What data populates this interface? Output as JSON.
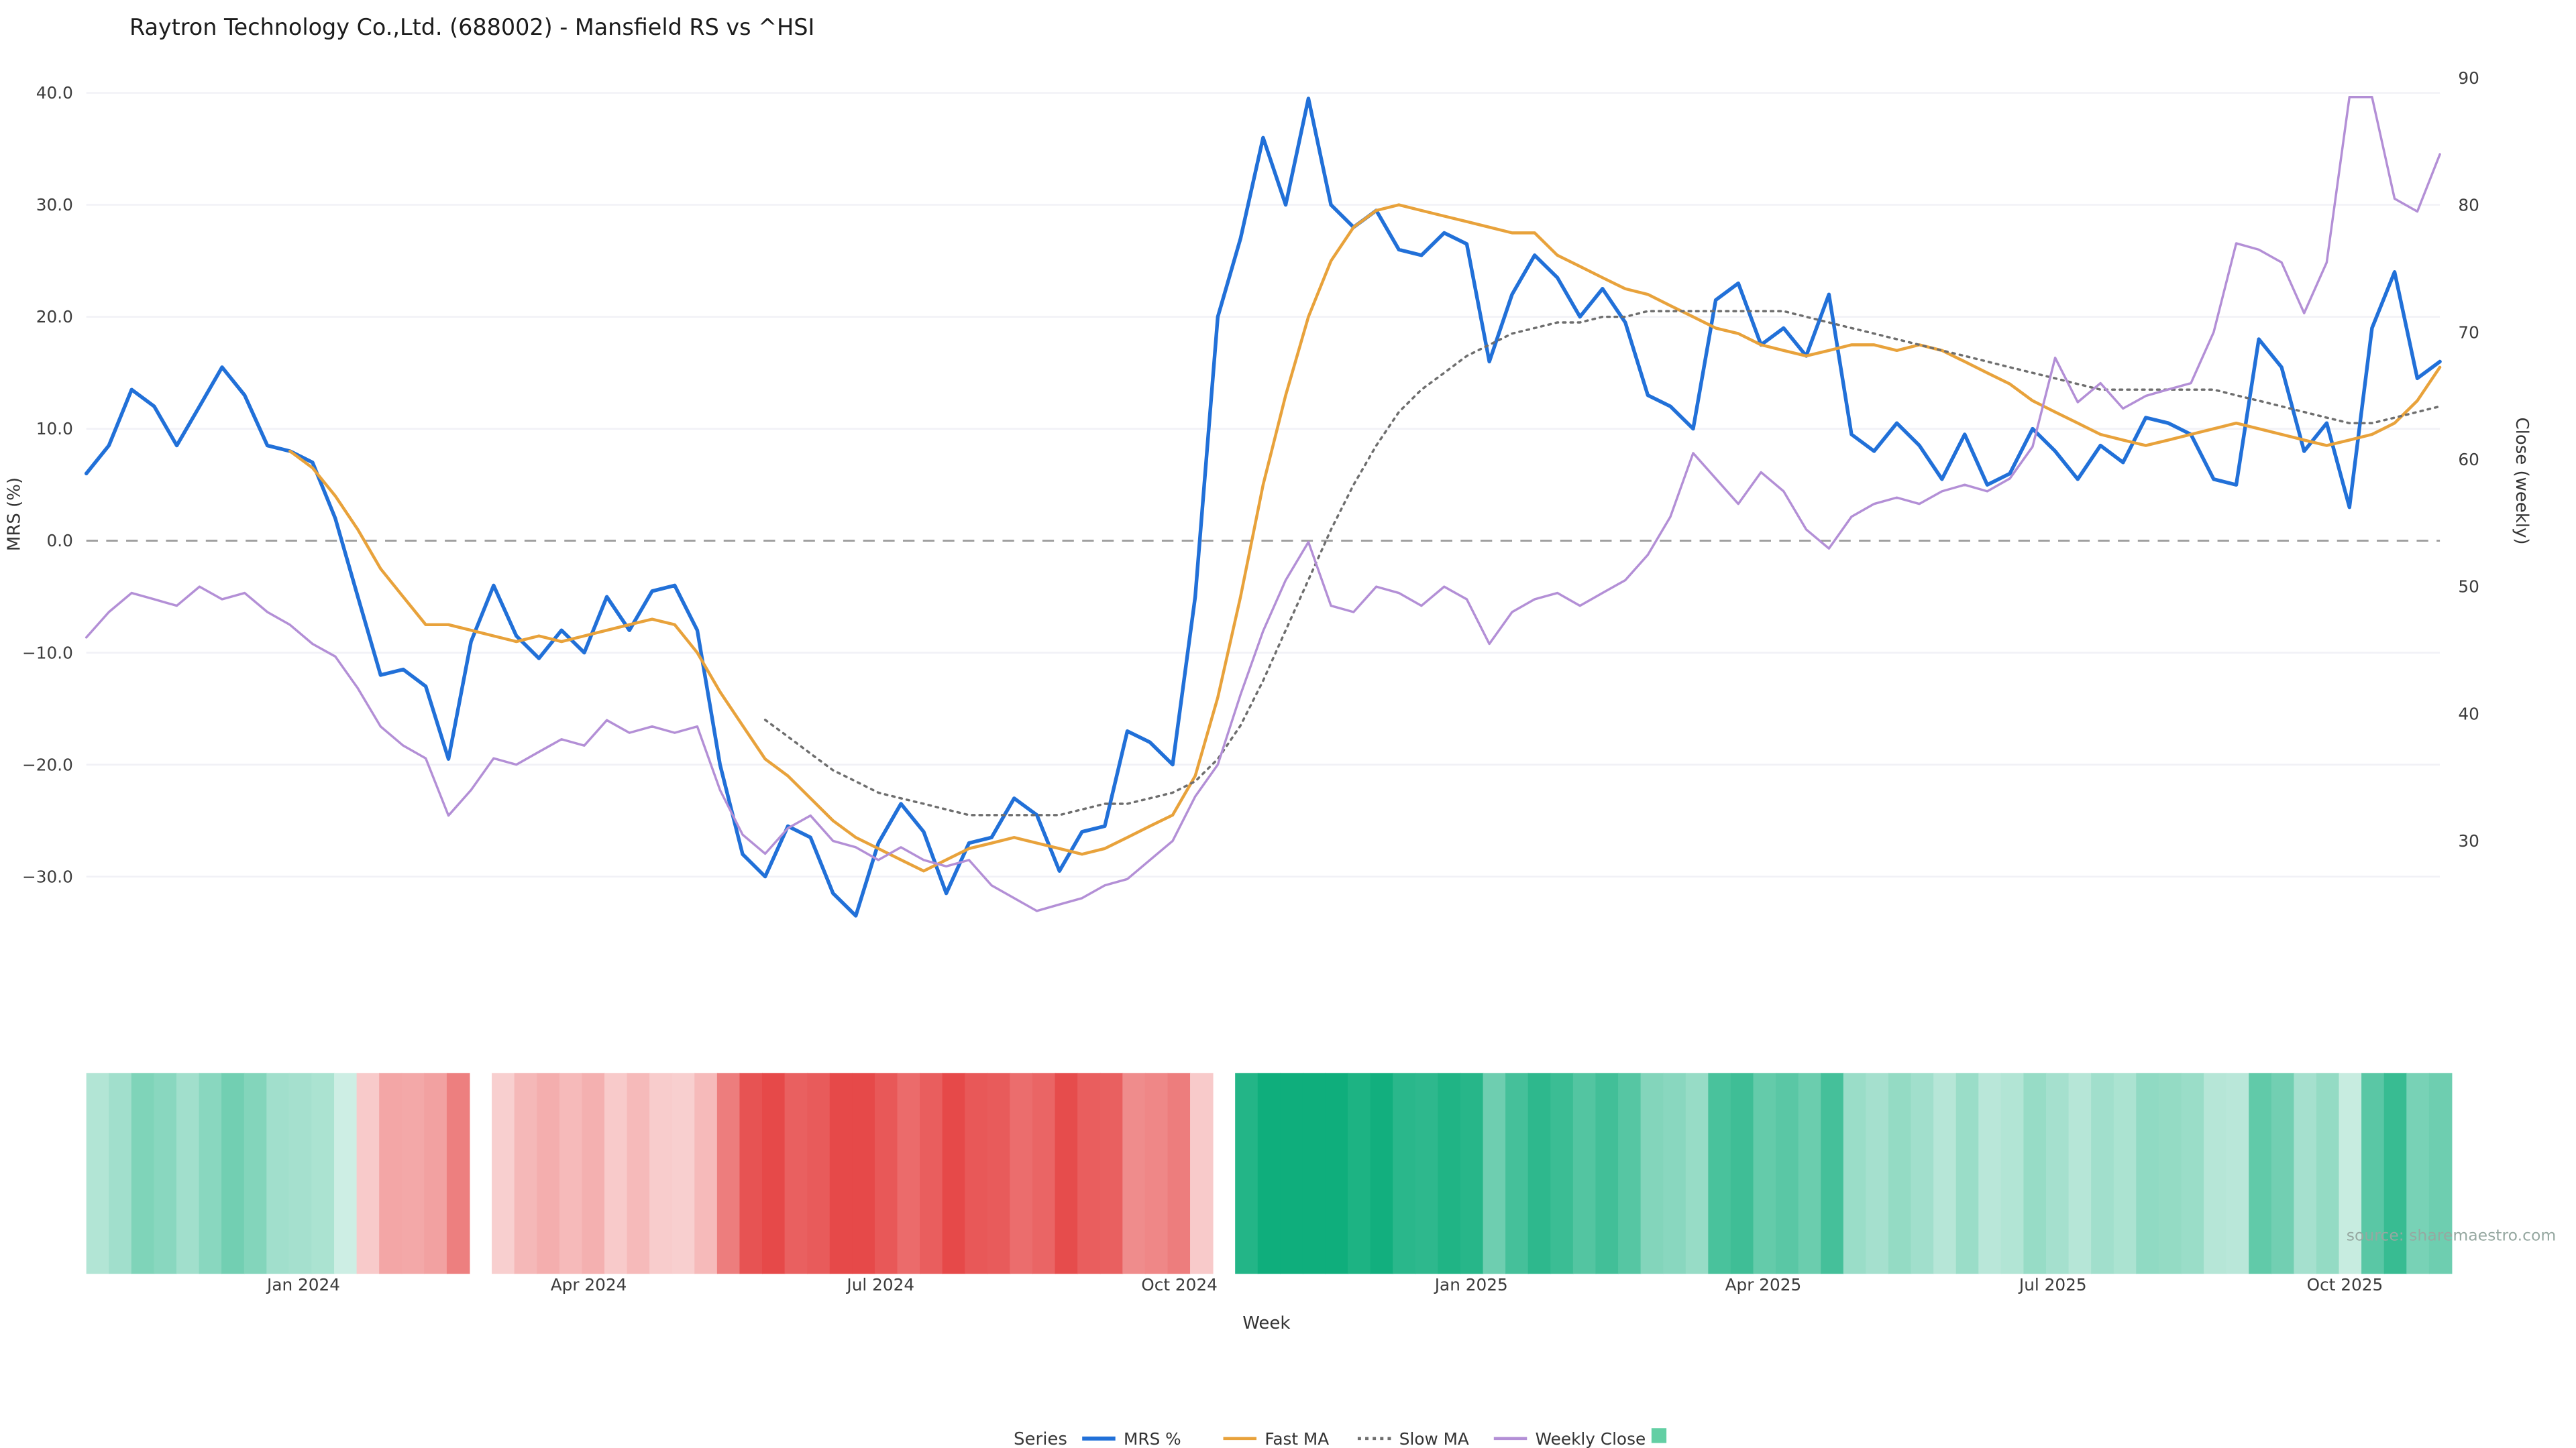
{
  "title": "Raytron Technology Co.,Ltd. (688002) - Mansfield RS vs ^HSI",
  "source": "source: sharemaestro.com",
  "axes": {
    "left_label": "MRS (%)",
    "right_label": "Close (weekly)",
    "x_label": "Week"
  },
  "legend": {
    "title": "Series",
    "items": [
      {
        "label": "MRS %",
        "type": "line",
        "color": "#2170d8"
      },
      {
        "label": "Fast MA",
        "type": "line",
        "color": "#e8a23b"
      },
      {
        "label": "Slow MA",
        "type": "dashed-line",
        "color": "#6e6e6e"
      },
      {
        "label": "Weekly Close",
        "type": "line",
        "color": "#b38fd6"
      },
      {
        "label": "",
        "type": "swatch",
        "color": "#63cfa4"
      }
    ]
  },
  "chart_data": {
    "type": "line",
    "x_unit": "week",
    "weeks": 105,
    "grid": true,
    "x_ticks": [
      {
        "label": "Jan 2024",
        "week": 9.6
      },
      {
        "label": "Apr 2024",
        "week": 22.2
      },
      {
        "label": "Jul 2024",
        "week": 35.1
      },
      {
        "label": "Oct 2024",
        "week": 48.3
      },
      {
        "label": "Jan 2025",
        "week": 61.2
      },
      {
        "label": "Apr 2025",
        "week": 74.1
      },
      {
        "label": "Jul 2025",
        "week": 86.9
      },
      {
        "label": "Oct 2025",
        "week": 99.8
      }
    ],
    "y_left": {
      "label": "MRS (%)",
      "range": [
        -38,
        41
      ],
      "ticks": [
        40,
        30,
        20,
        10,
        0,
        -10,
        -20,
        -30
      ],
      "tick_labels": [
        "40.0",
        "30.0",
        "20.0",
        "10.0",
        "0.0",
        "−10.0",
        "−20.0",
        "−30.0"
      ],
      "zero_dashed_line": true
    },
    "y_right": {
      "label": "Close (weekly)",
      "range": [
        29,
        90
      ],
      "ticks": [
        90,
        80,
        70,
        60,
        50,
        40,
        30
      ],
      "tick_labels": [
        "90",
        "80",
        "70",
        "60",
        "50",
        "40",
        "30"
      ]
    },
    "series": [
      {
        "name": "MRS %",
        "axis": "left",
        "color": "#2170d8",
        "style": "solid",
        "width": 2.2,
        "values": [
          6,
          8.5,
          13.5,
          12,
          8.5,
          12,
          15.5,
          13,
          8.5,
          8,
          7,
          2,
          -5,
          -12,
          -11.5,
          -13,
          -19.5,
          -9,
          -4,
          -8.5,
          -10.5,
          -8,
          -10,
          -5,
          -8,
          -4.5,
          -4,
          -8,
          -20,
          -28,
          -30,
          -25.5,
          -26.5,
          -31.5,
          -33.5,
          -27,
          -23.5,
          -26,
          -31.5,
          -27,
          -26.5,
          -23,
          -24.5,
          -29.5,
          -26,
          -25.5,
          -17,
          -18,
          -20,
          -5,
          20,
          27,
          36,
          30,
          39.5,
          30,
          28,
          29.5,
          26,
          25.5,
          27.5,
          26.5,
          16,
          22,
          25.5,
          23.5,
          20,
          22.5,
          19.5,
          13,
          12,
          10,
          21.5,
          23,
          17.5,
          19,
          16.5,
          22,
          9.5,
          8,
          10.5,
          8.5,
          5.5,
          9.5,
          5,
          6,
          10,
          8,
          5.5,
          8.5,
          7,
          11,
          10.5,
          9.5,
          5.5,
          5,
          18,
          15.5,
          8,
          10.5,
          3,
          19,
          24,
          14.5,
          16
        ]
      },
      {
        "name": "Fast MA",
        "axis": "left",
        "color": "#e8a23b",
        "style": "solid",
        "width": 1.8,
        "values": [
          null,
          null,
          null,
          null,
          null,
          null,
          null,
          null,
          null,
          8,
          6.5,
          4,
          1,
          -2.5,
          -5,
          -7.5,
          -7.5,
          -8,
          -8.5,
          -9,
          -8.5,
          -9,
          -8.5,
          -8,
          -7.5,
          -7,
          -7.5,
          -10,
          -13.5,
          -16.5,
          -19.5,
          -21,
          -23,
          -25,
          -26.5,
          -27.5,
          -28.5,
          -29.5,
          -28.5,
          -27.5,
          -27,
          -26.5,
          -27,
          -27.5,
          -28,
          -27.5,
          -26.5,
          -25.5,
          -24.5,
          -21,
          -14,
          -5,
          5,
          13,
          20,
          25,
          28,
          29.5,
          30,
          29.5,
          29,
          28.5,
          28,
          27.5,
          27.5,
          25.5,
          24.5,
          23.5,
          22.5,
          22,
          21,
          20,
          19,
          18.5,
          17.5,
          17,
          16.5,
          17,
          17.5,
          17.5,
          17,
          17.5,
          17,
          16,
          15,
          14,
          12.5,
          11.5,
          10.5,
          9.5,
          9,
          8.5,
          9,
          9.5,
          10,
          10.5,
          10,
          9.5,
          9,
          8.5,
          9,
          9.5,
          10.5,
          12.5,
          15.5
        ]
      },
      {
        "name": "Slow MA",
        "axis": "left",
        "color": "#6e6e6e",
        "style": "dotted",
        "width": 1.4,
        "values": [
          null,
          null,
          null,
          null,
          null,
          null,
          null,
          null,
          null,
          null,
          null,
          null,
          null,
          null,
          null,
          null,
          null,
          null,
          null,
          null,
          null,
          null,
          null,
          null,
          null,
          null,
          null,
          null,
          null,
          null,
          -16,
          -17.5,
          -19,
          -20.5,
          -21.5,
          -22.5,
          -23,
          -23.5,
          -24,
          -24.5,
          -24.5,
          -24.5,
          -24.5,
          -24.5,
          -24,
          -23.5,
          -23.5,
          -23,
          -22.5,
          -21.5,
          -19.5,
          -16.5,
          -12.5,
          -8,
          -3.5,
          1,
          5,
          8.5,
          11.5,
          13.5,
          15,
          16.5,
          17.5,
          18.5,
          19,
          19.5,
          19.5,
          20,
          20,
          20.5,
          20.5,
          20.5,
          20.5,
          20.5,
          20.5,
          20.5,
          20,
          19.5,
          19,
          18.5,
          18,
          17.5,
          17,
          16.5,
          16,
          15.5,
          15,
          14.5,
          14,
          13.5,
          13.5,
          13.5,
          13.5,
          13.5,
          13.5,
          13,
          12.5,
          12,
          11.5,
          11,
          10.5,
          10.5,
          11,
          11.5,
          12
        ]
      },
      {
        "name": "Weekly Close",
        "axis": "right",
        "color": "#b38fd6",
        "style": "solid",
        "width": 1.4,
        "values": [
          46,
          48,
          49.5,
          49,
          48.5,
          50,
          49,
          49.5,
          48,
          47,
          45.5,
          44.5,
          42,
          39,
          37.5,
          36.5,
          32,
          34,
          36.5,
          36,
          37,
          38,
          37.5,
          39.5,
          38.5,
          39,
          38.5,
          39,
          34,
          30.5,
          29,
          31,
          32,
          30,
          29.5,
          28.5,
          29.5,
          28.5,
          28,
          28.5,
          26.5,
          25.5,
          24.5,
          25,
          25.5,
          26.5,
          27,
          28.5,
          30,
          33.5,
          36,
          41.5,
          46.5,
          50.5,
          53.5,
          48.5,
          48,
          50,
          49.5,
          48.5,
          50,
          49,
          45.5,
          48,
          49,
          49.5,
          48.5,
          49.5,
          50.5,
          52.5,
          55.5,
          60.5,
          58.5,
          56.5,
          59,
          57.5,
          54.5,
          53,
          55.5,
          56.5,
          57,
          56.5,
          57.5,
          58,
          57.5,
          58.5,
          61,
          68,
          64.5,
          66,
          64,
          65,
          65.5,
          66,
          70,
          77,
          76.5,
          75.5,
          71.5,
          75.5,
          88.5,
          88.5,
          80.5,
          79.5,
          84
        ]
      }
    ],
    "heatmap": {
      "based_on": "MRS %",
      "positive_color": "#0fae7c",
      "negative_color": "#e64949",
      "gap_weeks": [
        17,
        50
      ]
    }
  }
}
